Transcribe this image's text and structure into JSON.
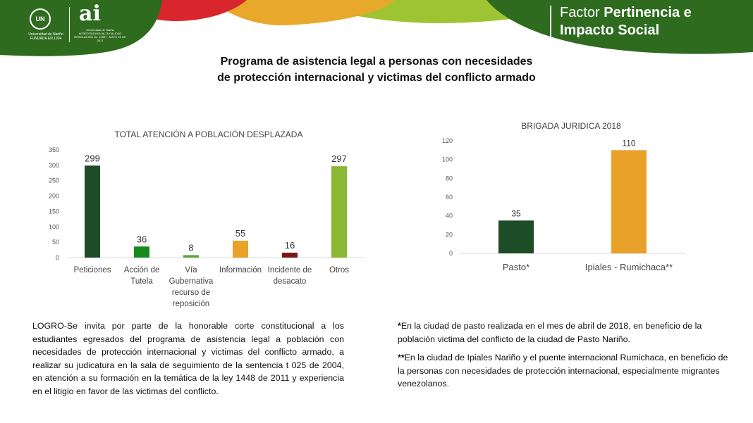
{
  "header": {
    "university_logo_text": "Universidad de Nariño",
    "university_logo_subtext": "FUNDADA EN 1904",
    "ai_logo_text": "ai",
    "ai_logo_sub": "Universidad de Nariño",
    "ai_logo_caption": "ACREDITADA EN ALTA CALIDAD RESOLUCIÓN No. 10567 - MAYO 23 DE 2017",
    "factor_prefix": "Factor",
    "factor_bold_1": "Pertinencia e",
    "factor_bold_2": "Impacto Social",
    "colors": {
      "green": "#2f6b1f",
      "red": "#d9262c",
      "orange": "#e8a82b",
      "lime": "#9ec431"
    }
  },
  "title": {
    "line1": "Programa de asistencia legal a personas con necesidades",
    "line2": "de protección internacional y victimas del conflicto armado"
  },
  "chart_data": [
    {
      "type": "bar",
      "title": "TOTAL ATENCIÓN A POBLACIÓN DESPLAZADA",
      "categories": [
        [
          "Peticiones"
        ],
        [
          "Acción de",
          "Tutela"
        ],
        [
          "Vía",
          "Gubernativa",
          "recurso de",
          "reposición"
        ],
        [
          "Información"
        ],
        [
          "Incidente de",
          "desacato"
        ],
        [
          "Otros"
        ]
      ],
      "values": [
        299,
        36,
        8,
        55,
        16,
        297
      ],
      "colors": [
        "#1d4d26",
        "#178a1e",
        "#5aa33a",
        "#e9a12a",
        "#7c1515",
        "#8ab734"
      ],
      "ylim": [
        0,
        350
      ],
      "yticks": [
        0,
        50,
        100,
        150,
        200,
        250,
        300,
        350
      ],
      "grid": false
    },
    {
      "type": "bar",
      "title": "BRIGADA JURIDICA 2018",
      "categories": [
        [
          "Pasto*"
        ],
        [
          "Ipiales - Rumichaca**"
        ]
      ],
      "values": [
        35,
        110
      ],
      "colors": [
        "#1d4d26",
        "#e9a12a"
      ],
      "ylim": [
        0,
        120
      ],
      "yticks": [
        0,
        20,
        40,
        60,
        80,
        100,
        120
      ],
      "grid": false
    }
  ],
  "notes": {
    "logro": "LOGRO-Se invita por parte de la honorable corte constitucional a los estudiantes egresados del programa de asistencia legal a población con necesidades de protección internacional y victimas del conflicto armado, a realizar su judicatura en la sala de seguimiento de la sentencia t 025 de 2004, en atención a su formación en la temática de la ley 1448 de 2011 y experiencia en el litigio en favor de las victimas del conflicto.",
    "note1_mark": "*",
    "note1": "En la ciudad de pasto realizada en el mes de abril de 2018, en beneficio de la población victima del conflicto de la ciudad de Pasto Nariño.",
    "note2_mark": "**",
    "note2": "En la ciudad de Ipiales Nariño y el puente internacional Rumichaca, en beneficio de la personas con necesidades de protección internacional, especialmente migrantes venezolanos."
  }
}
